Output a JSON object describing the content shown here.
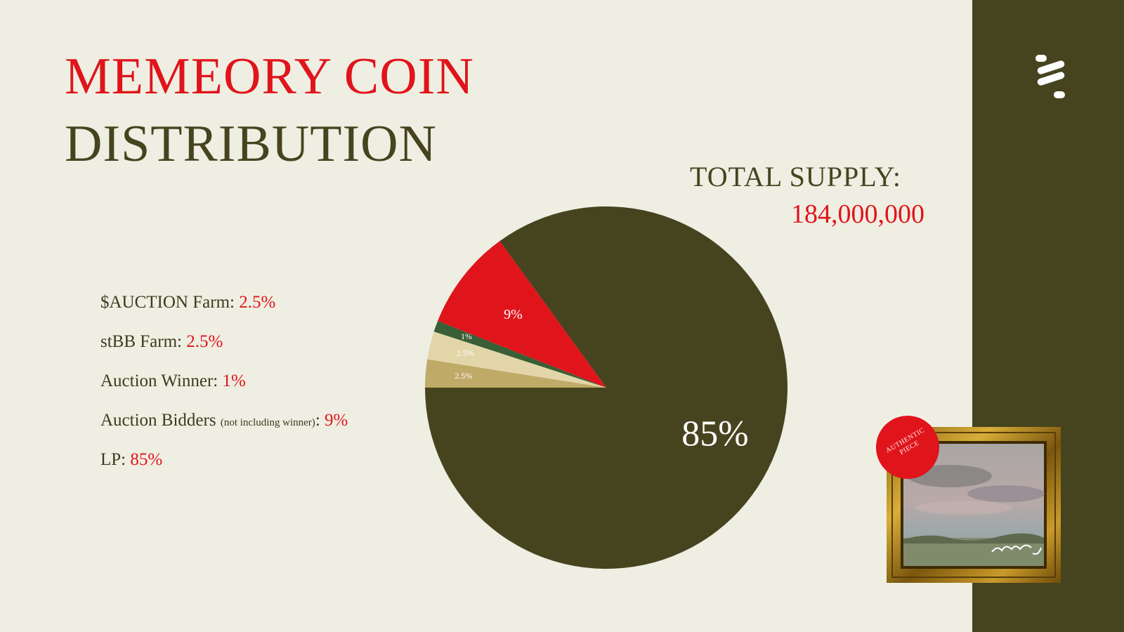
{
  "title": {
    "line1": "MEMEORY COIN",
    "line2": "DISTRIBUTION"
  },
  "supply": {
    "label": "TOTAL SUPPLY:",
    "value": "184,000,000"
  },
  "legend": [
    {
      "label": "$AUCTION Farm: ",
      "note": "",
      "value": "2.5%"
    },
    {
      "label": "stBB Farm: ",
      "note": "",
      "value": "2.5%"
    },
    {
      "label": "Auction Winner: ",
      "note": "",
      "value": "1%"
    },
    {
      "label": "Auction Bidders",
      "note": "(not including winner)",
      "value": "9%"
    },
    {
      "label": "LP: ",
      "note": "",
      "value": "85%"
    }
  ],
  "badge": {
    "line1": "AUTHENTIC",
    "line2": "PIECE"
  },
  "colors": {
    "background": "#EFEEE2",
    "olive": "#46441F",
    "accent_red": "#E0141B",
    "green": "#3A5E35",
    "light_tan": "#E2D6A9",
    "tan": "#BFAA68"
  },
  "icons": {
    "logo": "stacked-bars-logo-icon"
  },
  "chart_data": {
    "type": "pie",
    "slices": [
      {
        "name": "LP",
        "value": 85,
        "label": "85%",
        "color": "#46441F"
      },
      {
        "name": "Auction Bidders",
        "value": 9,
        "label": "9%",
        "color": "#E0141B"
      },
      {
        "name": "Auction Winner",
        "value": 1,
        "label": "1%",
        "color": "#3A5E35"
      },
      {
        "name": "stBB Farm",
        "value": 2.5,
        "label": "2.5%",
        "color": "#E2D6A9"
      },
      {
        "name": "$AUCTION Farm",
        "value": 2.5,
        "label": "2.5%",
        "color": "#BFAA68"
      }
    ],
    "title": "",
    "direction": "clockwise from left"
  }
}
